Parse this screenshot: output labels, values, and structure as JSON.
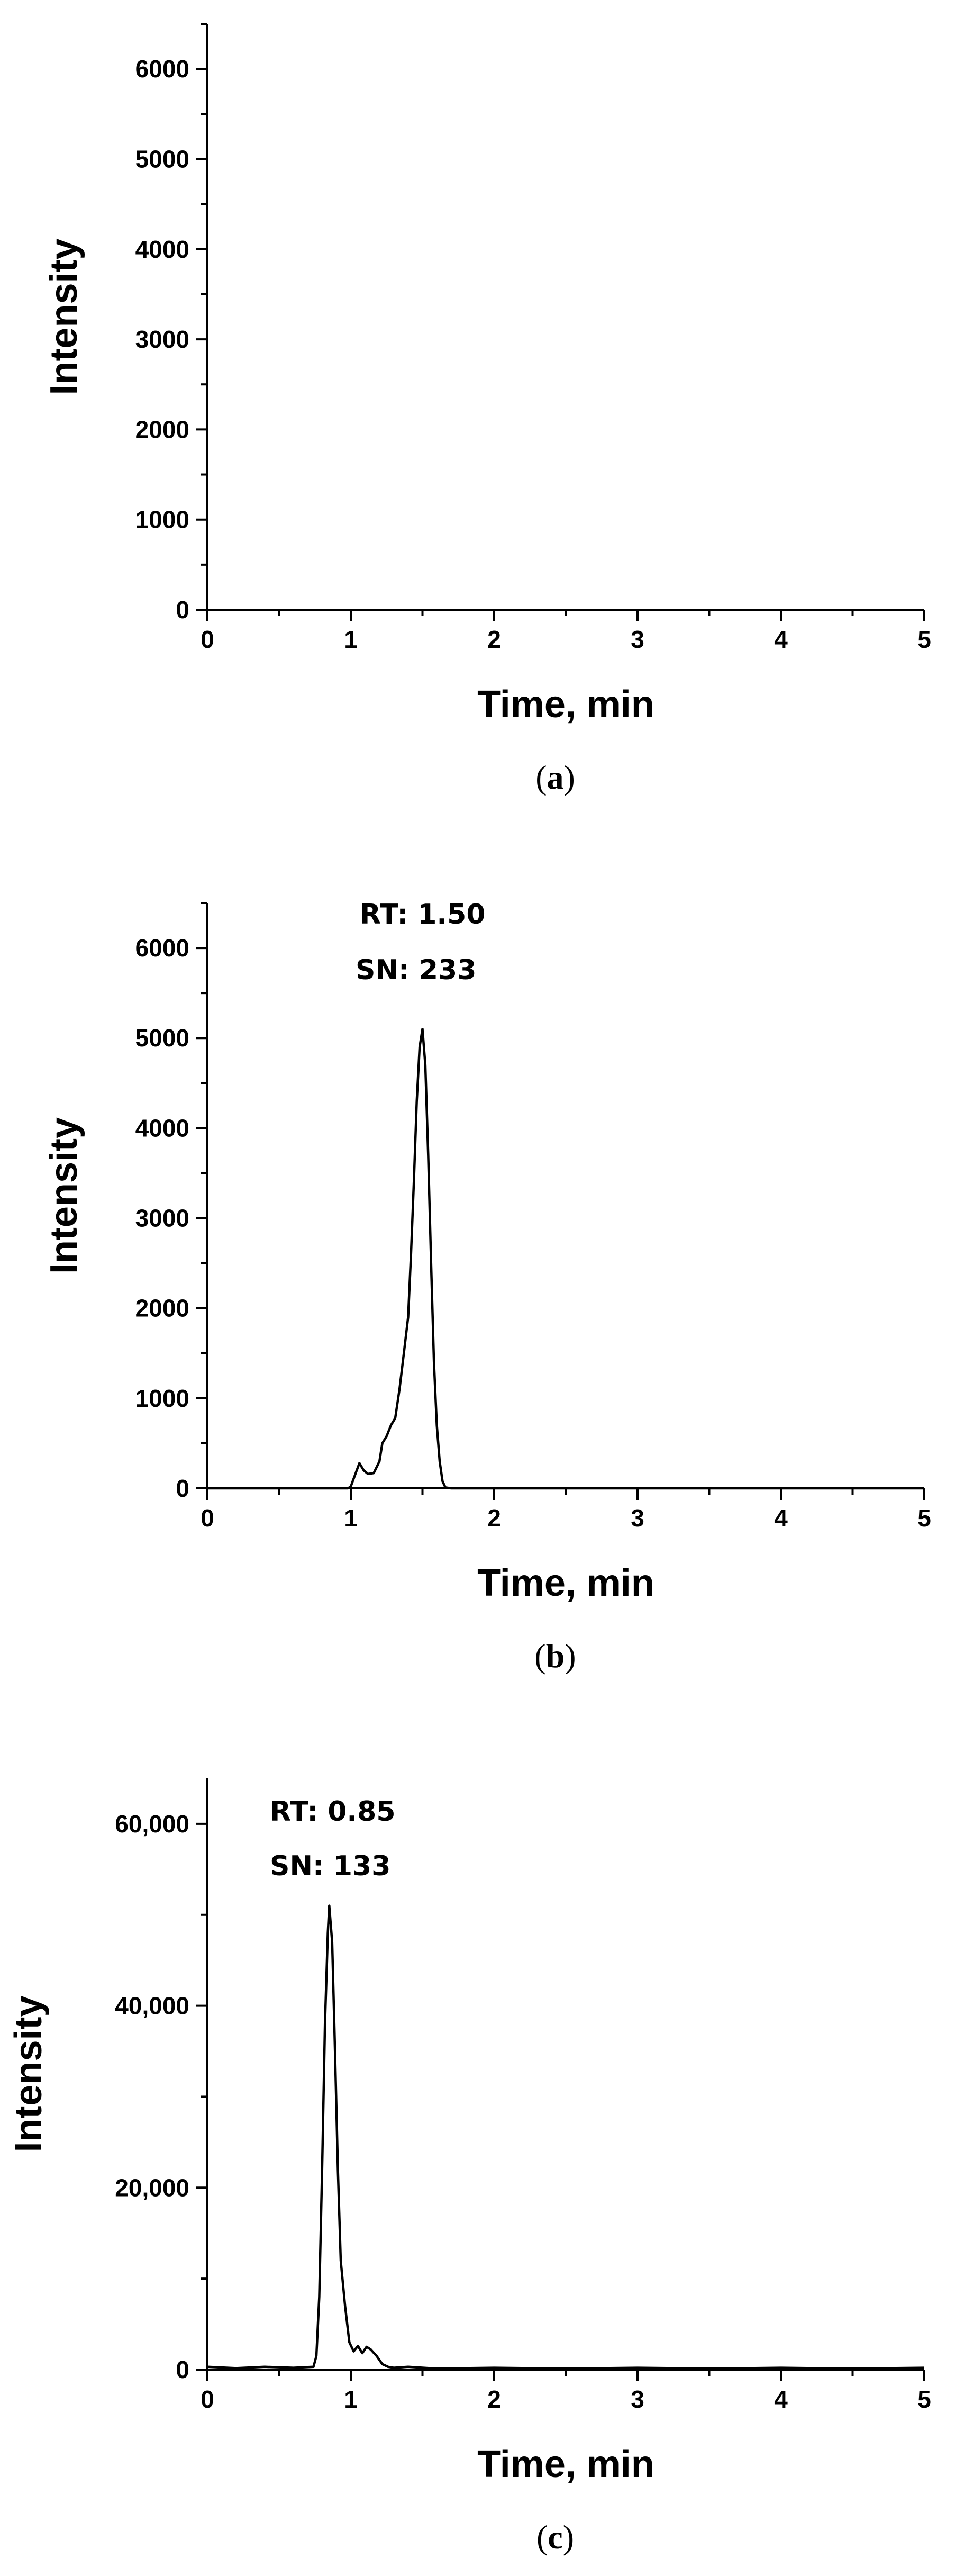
{
  "chart_data": [
    {
      "type": "line",
      "panel": "(a)",
      "caption_letter": "a",
      "xlabel": "Time, min",
      "ylabel": "Intensity",
      "xlim": [
        0,
        5
      ],
      "ylim": [
        0,
        6500
      ],
      "x_ticks": [
        0,
        1,
        2,
        3,
        4,
        5
      ],
      "x_tick_labels": [
        "0",
        "1",
        "2",
        "3",
        "4",
        "5"
      ],
      "y_ticks": [
        0,
        1000,
        2000,
        3000,
        4000,
        5000,
        6000
      ],
      "y_tick_labels": [
        "0",
        "1000",
        "2000",
        "3000",
        "4000",
        "5000",
        "6000"
      ],
      "annotations": [],
      "series": [
        {
          "x": [],
          "y": []
        }
      ]
    },
    {
      "type": "line",
      "panel": "(b)",
      "caption_letter": "b",
      "xlabel": "Time, min",
      "ylabel": "Intensity",
      "xlim": [
        0,
        5
      ],
      "ylim": [
        0,
        6500
      ],
      "x_ticks": [
        0,
        1,
        2,
        3,
        4,
        5
      ],
      "x_tick_labels": [
        "0",
        "1",
        "2",
        "3",
        "4",
        "5"
      ],
      "y_ticks": [
        0,
        1000,
        2000,
        3000,
        4000,
        5000,
        6000
      ],
      "y_tick_labels": [
        "0",
        "1000",
        "2000",
        "3000",
        "4000",
        "5000",
        "6000"
      ],
      "annotations": [
        "RT: 1.50",
        "SN: 233"
      ],
      "series": [
        {
          "x": [
            0,
            0.98,
            1.0,
            1.03,
            1.06,
            1.09,
            1.12,
            1.16,
            1.2,
            1.22,
            1.25,
            1.28,
            1.31,
            1.34,
            1.37,
            1.4,
            1.42,
            1.44,
            1.46,
            1.48,
            1.5,
            1.52,
            1.54,
            1.56,
            1.58,
            1.6,
            1.62,
            1.64,
            1.66,
            1.7,
            2.0,
            3.0,
            4.0,
            5.0
          ],
          "y": [
            0,
            0,
            20,
            150,
            280,
            200,
            160,
            170,
            300,
            500,
            580,
            700,
            780,
            1100,
            1500,
            1900,
            2600,
            3400,
            4300,
            4900,
            5100,
            4700,
            3700,
            2500,
            1400,
            700,
            300,
            80,
            10,
            0,
            0,
            0,
            0,
            0
          ]
        }
      ]
    },
    {
      "type": "line",
      "panel": "(c)",
      "caption_letter": "c",
      "xlabel": "Time, min",
      "ylabel": "Intensity",
      "xlim": [
        0,
        5
      ],
      "ylim": [
        0,
        65000
      ],
      "x_ticks": [
        0,
        1,
        2,
        3,
        4,
        5
      ],
      "x_tick_labels": [
        "0",
        "1",
        "2",
        "3",
        "4",
        "5"
      ],
      "y_ticks": [
        0,
        20000,
        40000,
        60000
      ],
      "y_tick_labels": [
        "0",
        "20,000",
        "40,000",
        "60,000"
      ],
      "annotations": [
        "RT: 0.85",
        "SN: 133"
      ],
      "series": [
        {
          "x": [
            0,
            0.2,
            0.4,
            0.6,
            0.74,
            0.76,
            0.78,
            0.8,
            0.82,
            0.84,
            0.85,
            0.87,
            0.89,
            0.91,
            0.93,
            0.96,
            0.99,
            1.02,
            1.05,
            1.08,
            1.11,
            1.14,
            1.18,
            1.22,
            1.26,
            1.3,
            1.4,
            1.6,
            2.0,
            2.5,
            3.0,
            3.5,
            4.0,
            4.5,
            5.0
          ],
          "y": [
            300,
            150,
            300,
            200,
            300,
            1500,
            8000,
            22000,
            38000,
            48000,
            51000,
            47000,
            35000,
            22000,
            12000,
            7000,
            3000,
            2000,
            2600,
            1800,
            2500,
            2200,
            1500,
            600,
            300,
            200,
            300,
            100,
            200,
            100,
            200,
            100,
            200,
            100,
            200
          ]
        }
      ]
    }
  ]
}
